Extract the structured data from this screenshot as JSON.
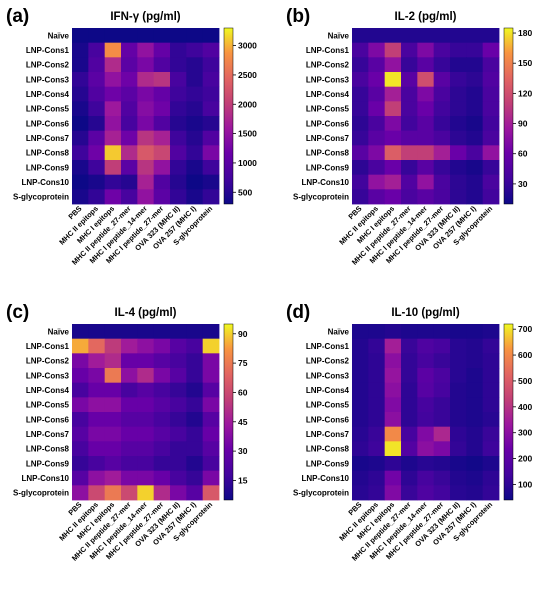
{
  "chart_data": [
    {
      "panel_label": "(a)",
      "type": "heatmap",
      "title": "IFN-γ (pg/ml)",
      "rows": [
        "Naïve",
        "LNP-Cons1",
        "LNP-Cons2",
        "LNP-Cons3",
        "LNP-Cons4",
        "LNP-Cons5",
        "LNP-Cons6",
        "LNP-Cons7",
        "LNP-Cons8",
        "LNP-Cons9",
        "LNP-Cons10",
        "S-glycoprotein"
      ],
      "columns": [
        "PBS",
        "MHC II epitops",
        "MHC I epitops",
        "MHC II peptide_27-mer",
        "MHC I peptide_14-mer",
        "MHC I peptide_27-mer",
        "OVA 323 (MHC II)",
        "OVA 257 (MHC I)",
        "S-glycoprotein"
      ],
      "values": [
        [
          300,
          300,
          300,
          300,
          300,
          300,
          300,
          300,
          300
        ],
        [
          400,
          800,
          2800,
          1100,
          1500,
          1100,
          600,
          700,
          900
        ],
        [
          400,
          900,
          1800,
          1000,
          1300,
          900,
          600,
          500,
          700
        ],
        [
          600,
          1000,
          1500,
          1200,
          1800,
          1900,
          800,
          500,
          800
        ],
        [
          500,
          900,
          1200,
          1000,
          1300,
          1100,
          700,
          600,
          700
        ],
        [
          400,
          700,
          1600,
          900,
          1400,
          1200,
          600,
          500,
          800
        ],
        [
          300,
          500,
          1500,
          800,
          1300,
          900,
          500,
          400,
          500
        ],
        [
          500,
          1000,
          1700,
          1200,
          1900,
          1700,
          700,
          500,
          900
        ],
        [
          700,
          1200,
          3100,
          1800,
          2300,
          2100,
          900,
          600,
          1300
        ],
        [
          400,
          700,
          2000,
          1000,
          1900,
          1500,
          600,
          400,
          700
        ],
        [
          300,
          400,
          600,
          500,
          1700,
          900,
          500,
          300,
          400
        ],
        [
          400,
          600,
          1200,
          800,
          1500,
          1000,
          600,
          400,
          600
        ]
      ],
      "colorbar": {
        "min": 300,
        "max": 3300,
        "ticks": [
          500,
          1000,
          1500,
          2000,
          2500,
          3000
        ]
      }
    },
    {
      "panel_label": "(b)",
      "type": "heatmap",
      "title": "IL-2 (pg/ml)",
      "rows": [
        "Naïve",
        "LNP-Cons1",
        "LNP-Cons2",
        "LNP-Cons3",
        "LNP-Cons4",
        "LNP-Cons5",
        "LNP-Cons6",
        "LNP-Cons7",
        "LNP-Cons8",
        "LNP-Cons9",
        "LNP-Cons10",
        "S-glycoprotein"
      ],
      "columns": [
        "PBS",
        "MHC II epitops",
        "MHC I epitops",
        "MHC II peptide_27-mer",
        "MHC I peptide_14-mer",
        "MHC I peptide_27-mer",
        "OVA 323 (MHC II)",
        "OVA 257 (MHC I)",
        "S-glycoprotein"
      ],
      "values": [
        [
          20,
          20,
          20,
          20,
          20,
          20,
          20,
          20,
          20
        ],
        [
          40,
          70,
          110,
          40,
          70,
          40,
          30,
          30,
          60
        ],
        [
          30,
          50,
          80,
          30,
          50,
          30,
          20,
          20,
          40
        ],
        [
          40,
          60,
          180,
          50,
          120,
          50,
          30,
          25,
          45
        ],
        [
          30,
          50,
          90,
          40,
          70,
          40,
          25,
          20,
          40
        ],
        [
          30,
          60,
          110,
          40,
          60,
          35,
          25,
          20,
          40
        ],
        [
          25,
          40,
          70,
          35,
          50,
          30,
          20,
          15,
          35
        ],
        [
          30,
          50,
          60,
          50,
          50,
          40,
          25,
          20,
          40
        ],
        [
          50,
          70,
          130,
          110,
          110,
          90,
          60,
          40,
          80
        ],
        [
          25,
          40,
          60,
          30,
          50,
          30,
          20,
          15,
          30
        ],
        [
          35,
          80,
          90,
          45,
          80,
          40,
          25,
          20,
          40
        ],
        [
          30,
          50,
          60,
          40,
          50,
          40,
          25,
          20,
          35
        ]
      ],
      "colorbar": {
        "min": 10,
        "max": 185,
        "ticks": [
          30,
          60,
          90,
          120,
          150,
          180
        ]
      }
    },
    {
      "panel_label": "(c)",
      "type": "heatmap",
      "title": "IL-4 (pg/ml)",
      "rows": [
        "Naïve",
        "LNP-Cons1",
        "LNP-Cons2",
        "LNP-Cons3",
        "LNP-Cons4",
        "LNP-Cons5",
        "LNP-Cons6",
        "LNP-Cons7",
        "LNP-Cons8",
        "LNP-Cons9",
        "LNP-Cons10",
        "S-glycoprotein"
      ],
      "columns": [
        "PBS",
        "MHC II epitops",
        "MHC I epitops",
        "MHC II peptide_27-mer",
        "MHC I peptide_14-mer",
        "MHC I peptide_27-mer",
        "OVA 323 (MHC II)",
        "OVA 257 (MHC I)",
        "S-glycoprotein"
      ],
      "values": [
        [
          8,
          8,
          8,
          8,
          8,
          8,
          8,
          8,
          8
        ],
        [
          85,
          70,
          55,
          45,
          40,
          35,
          25,
          20,
          90
        ],
        [
          35,
          45,
          50,
          30,
          30,
          25,
          20,
          15,
          35
        ],
        [
          30,
          35,
          75,
          40,
          50,
          35,
          25,
          15,
          35
        ],
        [
          20,
          30,
          30,
          20,
          25,
          20,
          15,
          10,
          25
        ],
        [
          35,
          40,
          40,
          30,
          30,
          25,
          20,
          15,
          35
        ],
        [
          20,
          30,
          30,
          25,
          25,
          20,
          15,
          10,
          25
        ],
        [
          25,
          35,
          35,
          30,
          30,
          25,
          20,
          15,
          30
        ],
        [
          20,
          30,
          30,
          25,
          25,
          20,
          15,
          15,
          25
        ],
        [
          15,
          20,
          25,
          20,
          20,
          15,
          15,
          10,
          20
        ],
        [
          25,
          40,
          45,
          35,
          35,
          30,
          20,
          15,
          35
        ],
        [
          40,
          60,
          75,
          60,
          90,
          50,
          35,
          25,
          65
        ]
      ],
      "colorbar": {
        "min": 5,
        "max": 95,
        "ticks": [
          15,
          30,
          45,
          60,
          75,
          90
        ]
      }
    },
    {
      "panel_label": "(d)",
      "type": "heatmap",
      "title": "IL-10 (pg/ml)",
      "rows": [
        "Naïve",
        "LNP-Cons1",
        "LNP-Cons2",
        "LNP-Cons3",
        "LNP-Cons4",
        "LNP-Cons5",
        "LNP-Cons6",
        "LNP-Cons7",
        "LNP-Cons8",
        "LNP-Cons9",
        "LNP-Cons10",
        "S-glycoprotein"
      ],
      "columns": [
        "PBS",
        "MHC II epitops",
        "MHC I epitops",
        "MHC II peptide_27-mer",
        "MHC I peptide_14-mer",
        "MHC I peptide_27-mer",
        "OVA 323 (MHC II)",
        "OVA 257 (MHC I)",
        "S-glycoprotein"
      ],
      "values": [
        [
          70,
          70,
          80,
          70,
          70,
          70,
          60,
          60,
          70
        ],
        [
          80,
          110,
          350,
          120,
          170,
          150,
          90,
          80,
          110
        ],
        [
          80,
          100,
          300,
          110,
          150,
          120,
          90,
          80,
          100
        ],
        [
          80,
          100,
          320,
          110,
          200,
          160,
          90,
          70,
          100
        ],
        [
          80,
          100,
          300,
          100,
          190,
          150,
          80,
          70,
          100
        ],
        [
          80,
          100,
          280,
          100,
          150,
          120,
          80,
          70,
          100
        ],
        [
          80,
          100,
          300,
          100,
          140,
          120,
          80,
          70,
          90
        ],
        [
          90,
          120,
          600,
          150,
          280,
          370,
          100,
          80,
          120
        ],
        [
          100,
          130,
          700,
          180,
          300,
          270,
          110,
          80,
          130
        ],
        [
          60,
          70,
          100,
          70,
          90,
          80,
          60,
          50,
          70
        ],
        [
          80,
          100,
          250,
          100,
          150,
          120,
          80,
          70,
          100
        ],
        [
          90,
          110,
          280,
          120,
          170,
          140,
          90,
          80,
          110
        ]
      ],
      "colorbar": {
        "min": 40,
        "max": 720,
        "ticks": [
          100,
          200,
          300,
          400,
          500,
          600,
          700
        ]
      }
    }
  ]
}
